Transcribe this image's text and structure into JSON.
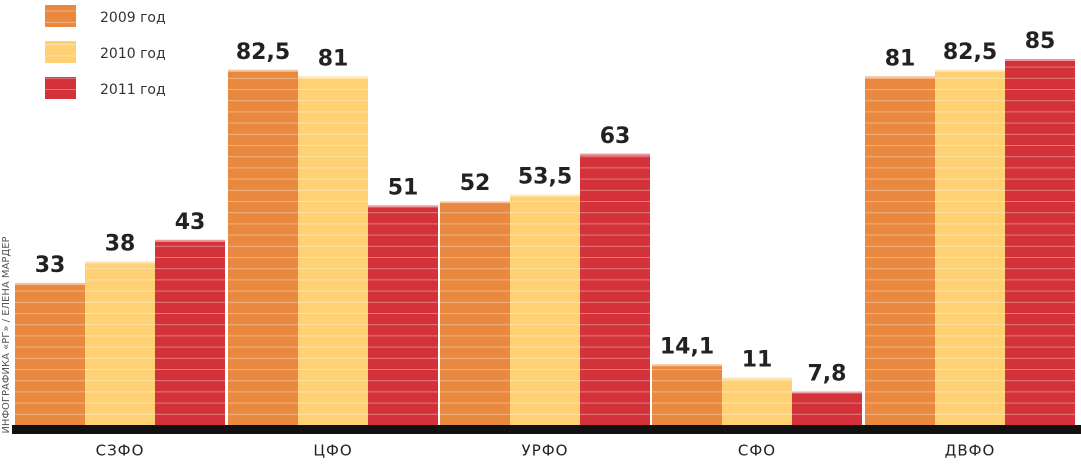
{
  "chart_data": {
    "type": "bar",
    "categories": [
      "СЗФО",
      "ЦФО",
      "УРФО",
      "СФО",
      "ДВФО"
    ],
    "series": [
      {
        "name": "2009 год",
        "color": "#e8893f",
        "values": [
          33,
          82.5,
          52,
          14.1,
          81
        ],
        "value_labels": [
          "33",
          "82,5",
          "52",
          "14,1",
          "81"
        ]
      },
      {
        "name": "2010 год",
        "color": "#fdd174",
        "values": [
          38,
          81,
          53.5,
          11,
          82.5
        ],
        "value_labels": [
          "38",
          "81",
          "53,5",
          "11",
          "82,5"
        ]
      },
      {
        "name": "2011 год",
        "color": "#d3323a",
        "values": [
          43,
          51,
          63,
          7.8,
          85
        ],
        "value_labels": [
          "43",
          "51",
          "63",
          "7,8",
          "85"
        ]
      }
    ],
    "ylim": [
      0,
      90
    ],
    "legend": "top-left",
    "credit": "ИНФОГРАФИКА «РГ» / ЕЛЕНА МАРДЕР"
  }
}
